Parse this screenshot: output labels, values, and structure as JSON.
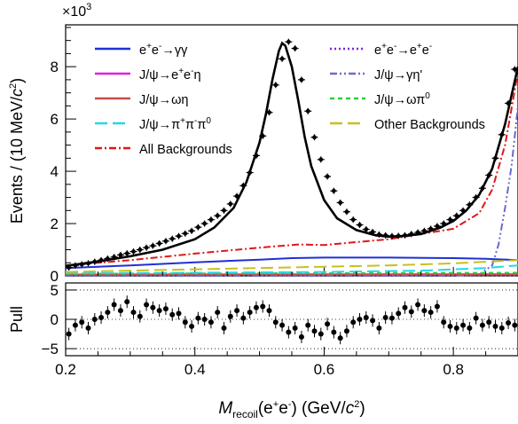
{
  "chart_data": [
    {
      "type": "line",
      "panel": "main",
      "multiplier_label": "×10",
      "multiplier_exponent": "3",
      "ylabel": "Events / (10 MeV/c²)",
      "ylabel_parts": {
        "before": "Events / (10 MeV/",
        "c": "c",
        "sup": "2",
        "after": ")"
      },
      "xlim": [
        0.2,
        0.9
      ],
      "ylim": [
        0,
        9.6
      ],
      "y_unit_note": "values in units of 10^3 events",
      "yticks": [
        0,
        2,
        4,
        6,
        8
      ],
      "ytick_labels": [
        "0",
        "2",
        "4",
        "6",
        "8"
      ],
      "legend_placement": "top",
      "series": [
        {
          "name": "e⁺e⁻→γγ",
          "label_html": "e<sup>+</sup>e<sup>-</sup>→γγ",
          "color": "#1f2fd6",
          "dash": "solid",
          "x": [
            0.2,
            0.3,
            0.4,
            0.5,
            0.55,
            0.6,
            0.7,
            0.8,
            0.85,
            0.9
          ],
          "y": [
            0.3,
            0.4,
            0.52,
            0.62,
            0.68,
            0.7,
            0.7,
            0.68,
            0.65,
            0.6
          ]
        },
        {
          "name": "e⁺e⁻→e⁺e⁻",
          "label_html": "e<sup>+</sup>e<sup>-</sup>→e<sup>+</sup>e<sup>-</sup>",
          "color": "#7a22e0",
          "dash": "dot",
          "x": [
            0.2,
            0.5,
            0.9
          ],
          "y": [
            0.02,
            0.02,
            0.02
          ]
        },
        {
          "name": "J/ψ→e⁺e⁻η",
          "label_html": "J/ψ→e<sup>+</sup>e<sup>-</sup>η",
          "color": "#e21ee0",
          "dash": "solid",
          "x": [
            0.2,
            0.5,
            0.9
          ],
          "y": [
            0.05,
            0.06,
            0.06
          ]
        },
        {
          "name": "J/ψ→γη'",
          "label_html": "J/ψ→γη'",
          "color": "#6a6ad0",
          "dash": "dashdotdot",
          "x": [
            0.2,
            0.8,
            0.84,
            0.86,
            0.87,
            0.88,
            0.89,
            0.9
          ],
          "y": [
            0,
            0,
            0.05,
            0.4,
            1.2,
            2.6,
            4.2,
            6.5
          ]
        },
        {
          "name": "J/ψ→ωη",
          "label_html": "J/ψ→ωη",
          "color": "#c0504d",
          "dash": "solid",
          "x": [
            0.2,
            0.5,
            0.9
          ],
          "y": [
            0.04,
            0.05,
            0.06
          ]
        },
        {
          "name": "J/ψ→ωπ⁰",
          "label_html": "J/ψ→ωπ<sup>0</sup>",
          "color": "#2ecc40",
          "dash": "dash",
          "x": [
            0.2,
            0.5,
            0.9
          ],
          "y": [
            0.08,
            0.1,
            0.12
          ]
        },
        {
          "name": "J/ψ→π⁺π⁻π⁰",
          "label_html": "J/ψ→π<sup>+</sup>π<sup>-</sup>π<sup>0</sup>",
          "color": "#22d8e8",
          "dash": "longdash",
          "x": [
            0.2,
            0.4,
            0.6,
            0.75,
            0.85,
            0.9
          ],
          "y": [
            0.1,
            0.12,
            0.15,
            0.2,
            0.3,
            0.4
          ]
        },
        {
          "name": "Other Backgrounds",
          "label_html": "Other Backgrounds",
          "color": "#c8c020",
          "dash": "longdash",
          "x": [
            0.2,
            0.3,
            0.4,
            0.5,
            0.6,
            0.7,
            0.8,
            0.9
          ],
          "y": [
            0.15,
            0.2,
            0.25,
            0.3,
            0.35,
            0.4,
            0.48,
            0.6
          ]
        },
        {
          "name": "All Backgrounds",
          "label_html": "All Backgrounds",
          "color": "#e01818",
          "dash": "dashdot",
          "x": [
            0.2,
            0.3,
            0.4,
            0.5,
            0.56,
            0.6,
            0.7,
            0.8,
            0.84,
            0.86,
            0.88,
            0.9
          ],
          "y": [
            0.4,
            0.6,
            0.85,
            1.08,
            1.2,
            1.18,
            1.4,
            1.8,
            2.4,
            3.3,
            5.0,
            7.8
          ]
        },
        {
          "name": "Total fit",
          "show_in_legend": false,
          "color": "#000000",
          "dash": "solid",
          "width": 2.6,
          "x": [
            0.2,
            0.25,
            0.3,
            0.35,
            0.4,
            0.43,
            0.46,
            0.48,
            0.5,
            0.51,
            0.52,
            0.53,
            0.535,
            0.54,
            0.55,
            0.56,
            0.57,
            0.58,
            0.6,
            0.62,
            0.65,
            0.68,
            0.7,
            0.72,
            0.75,
            0.78,
            0.8,
            0.82,
            0.84,
            0.86,
            0.88,
            0.9
          ],
          "y": [
            0.38,
            0.55,
            0.75,
            1.0,
            1.4,
            1.85,
            2.6,
            3.6,
            5.1,
            6.2,
            7.5,
            8.6,
            8.9,
            8.8,
            8.0,
            6.7,
            5.3,
            4.2,
            2.9,
            2.2,
            1.75,
            1.55,
            1.5,
            1.52,
            1.6,
            1.85,
            2.1,
            2.5,
            3.1,
            4.1,
            5.8,
            8.0
          ]
        }
      ],
      "data_points": {
        "name": "Data",
        "x": [
          0.205,
          0.215,
          0.225,
          0.235,
          0.245,
          0.255,
          0.265,
          0.275,
          0.285,
          0.295,
          0.305,
          0.315,
          0.325,
          0.335,
          0.345,
          0.355,
          0.365,
          0.375,
          0.385,
          0.395,
          0.405,
          0.415,
          0.425,
          0.435,
          0.445,
          0.455,
          0.465,
          0.475,
          0.485,
          0.495,
          0.505,
          0.515,
          0.525,
          0.535,
          0.545,
          0.555,
          0.565,
          0.575,
          0.585,
          0.595,
          0.605,
          0.615,
          0.625,
          0.635,
          0.645,
          0.655,
          0.665,
          0.675,
          0.685,
          0.695,
          0.705,
          0.715,
          0.725,
          0.735,
          0.745,
          0.755,
          0.765,
          0.775,
          0.785,
          0.795,
          0.805,
          0.815,
          0.825,
          0.835,
          0.845,
          0.855,
          0.865,
          0.875,
          0.885,
          0.895
        ],
        "y": [
          0.32,
          0.4,
          0.44,
          0.48,
          0.54,
          0.6,
          0.66,
          0.72,
          0.8,
          0.86,
          0.93,
          1.0,
          1.08,
          1.15,
          1.24,
          1.33,
          1.42,
          1.52,
          1.62,
          1.72,
          1.86,
          2.0,
          2.15,
          2.3,
          2.5,
          2.75,
          3.05,
          3.45,
          3.95,
          4.6,
          5.35,
          6.25,
          7.3,
          8.3,
          8.95,
          8.7,
          7.5,
          6.3,
          5.3,
          4.45,
          3.8,
          3.25,
          2.8,
          2.45,
          2.15,
          1.95,
          1.78,
          1.68,
          1.58,
          1.55,
          1.52,
          1.53,
          1.55,
          1.6,
          1.66,
          1.72,
          1.8,
          1.9,
          2.0,
          2.15,
          2.3,
          2.5,
          2.72,
          3.0,
          3.35,
          3.85,
          4.5,
          5.4,
          6.6,
          7.9
        ]
      }
    },
    {
      "type": "scatter",
      "panel": "pull",
      "ylabel": "Pull",
      "xlabel": "M_recoil(e⁺e⁻) (GeV/c²)",
      "xlabel_parts": {
        "M": "M",
        "sub": "recoil",
        "mid": "(e",
        "plus": "+",
        "e2": "e",
        "minus": "-",
        "tail": ") (GeV/",
        "c": "c",
        "sup": "2",
        "close": ")"
      },
      "xlim": [
        0.2,
        0.9
      ],
      "ylim": [
        -6.2,
        6.2
      ],
      "xticks": [
        0.2,
        0.4,
        0.6,
        0.8
      ],
      "xtick_labels": [
        "0.2",
        "0.4",
        "0.6",
        "0.8"
      ],
      "yticks": [
        -5,
        0,
        5
      ],
      "ytick_labels": [
        "−5",
        "0",
        "5"
      ],
      "reference_lines": [
        -5,
        0,
        5
      ],
      "x": [
        0.205,
        0.215,
        0.225,
        0.235,
        0.245,
        0.255,
        0.265,
        0.275,
        0.285,
        0.295,
        0.305,
        0.315,
        0.325,
        0.335,
        0.345,
        0.355,
        0.365,
        0.375,
        0.385,
        0.395,
        0.405,
        0.415,
        0.425,
        0.435,
        0.445,
        0.455,
        0.465,
        0.475,
        0.485,
        0.495,
        0.505,
        0.515,
        0.525,
        0.535,
        0.545,
        0.555,
        0.565,
        0.575,
        0.585,
        0.595,
        0.605,
        0.615,
        0.625,
        0.635,
        0.645,
        0.655,
        0.665,
        0.675,
        0.685,
        0.695,
        0.705,
        0.715,
        0.725,
        0.735,
        0.745,
        0.755,
        0.765,
        0.775,
        0.785,
        0.795,
        0.805,
        0.815,
        0.825,
        0.835,
        0.845,
        0.855,
        0.865,
        0.875,
        0.885,
        0.895
      ],
      "values": [
        -2.5,
        -1.0,
        -0.5,
        -1.5,
        0.0,
        0.3,
        1.2,
        2.5,
        1.5,
        3.0,
        1.2,
        0.5,
        2.5,
        2.0,
        1.5,
        1.8,
        0.8,
        1.0,
        -0.5,
        -1.2,
        0.2,
        0.0,
        -0.5,
        1.2,
        -1.5,
        0.5,
        1.5,
        0.2,
        1.2,
        2.0,
        2.2,
        1.5,
        -0.5,
        -1.0,
        -2.2,
        -1.5,
        -3.0,
        -1.0,
        -2.0,
        -2.5,
        -0.8,
        -2.2,
        -3.2,
        -2.0,
        -0.5,
        0.0,
        0.3,
        -0.2,
        -1.5,
        0.3,
        0.2,
        1.0,
        2.0,
        1.3,
        2.5,
        1.5,
        1.2,
        2.2,
        -0.5,
        -1.2,
        -1.5,
        -1.0,
        -1.5,
        0.2,
        -1.0,
        -0.5,
        -1.2,
        -1.5,
        -0.6,
        -1.0
      ]
    }
  ]
}
